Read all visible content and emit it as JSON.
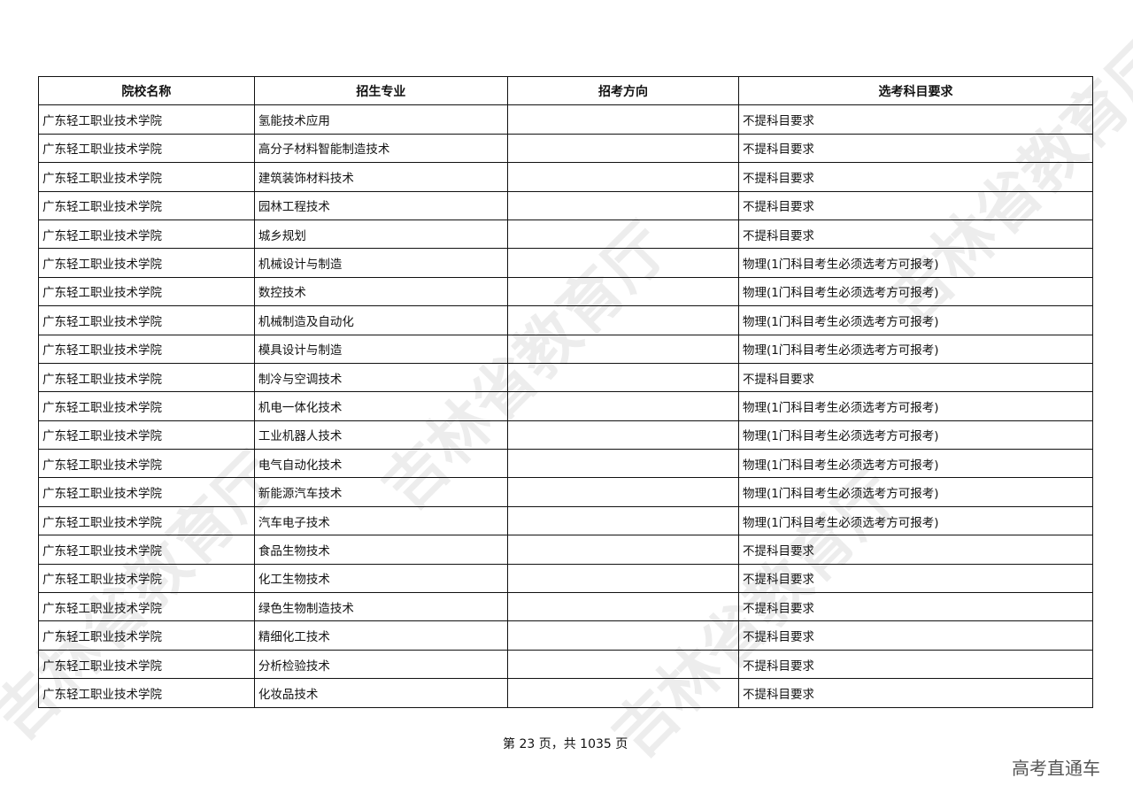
{
  "table": {
    "headers": [
      "院校名称",
      "招生专业",
      "招考方向",
      "选考科目要求"
    ],
    "rows": [
      [
        "广东轻工职业技术学院",
        "氢能技术应用",
        "",
        "不提科目要求"
      ],
      [
        "广东轻工职业技术学院",
        "高分子材料智能制造技术",
        "",
        "不提科目要求"
      ],
      [
        "广东轻工职业技术学院",
        "建筑装饰材料技术",
        "",
        "不提科目要求"
      ],
      [
        "广东轻工职业技术学院",
        "园林工程技术",
        "",
        "不提科目要求"
      ],
      [
        "广东轻工职业技术学院",
        "城乡规划",
        "",
        "不提科目要求"
      ],
      [
        "广东轻工职业技术学院",
        "机械设计与制造",
        "",
        "物理(1门科目考生必须选考方可报考)"
      ],
      [
        "广东轻工职业技术学院",
        "数控技术",
        "",
        "物理(1门科目考生必须选考方可报考)"
      ],
      [
        "广东轻工职业技术学院",
        "机械制造及自动化",
        "",
        "物理(1门科目考生必须选考方可报考)"
      ],
      [
        "广东轻工职业技术学院",
        "模具设计与制造",
        "",
        "物理(1门科目考生必须选考方可报考)"
      ],
      [
        "广东轻工职业技术学院",
        "制冷与空调技术",
        "",
        "不提科目要求"
      ],
      [
        "广东轻工职业技术学院",
        "机电一体化技术",
        "",
        "物理(1门科目考生必须选考方可报考)"
      ],
      [
        "广东轻工职业技术学院",
        "工业机器人技术",
        "",
        "物理(1门科目考生必须选考方可报考)"
      ],
      [
        "广东轻工职业技术学院",
        "电气自动化技术",
        "",
        "物理(1门科目考生必须选考方可报考)"
      ],
      [
        "广东轻工职业技术学院",
        "新能源汽车技术",
        "",
        "物理(1门科目考生必须选考方可报考)"
      ],
      [
        "广东轻工职业技术学院",
        "汽车电子技术",
        "",
        "物理(1门科目考生必须选考方可报考)"
      ],
      [
        "广东轻工职业技术学院",
        "食品生物技术",
        "",
        "不提科目要求"
      ],
      [
        "广东轻工职业技术学院",
        "化工生物技术",
        "",
        "不提科目要求"
      ],
      [
        "广东轻工职业技术学院",
        "绿色生物制造技术",
        "",
        "不提科目要求"
      ],
      [
        "广东轻工职业技术学院",
        "精细化工技术",
        "",
        "不提科目要求"
      ],
      [
        "广东轻工职业技术学院",
        "分析检验技术",
        "",
        "不提科目要求"
      ],
      [
        "广东轻工职业技术学院",
        "化妆品技术",
        "",
        "不提科目要求"
      ]
    ]
  },
  "footer": {
    "page_info": "第 23 页，共 1035 页"
  },
  "brand": "高考直通车",
  "watermark": "吉林省教育厅"
}
